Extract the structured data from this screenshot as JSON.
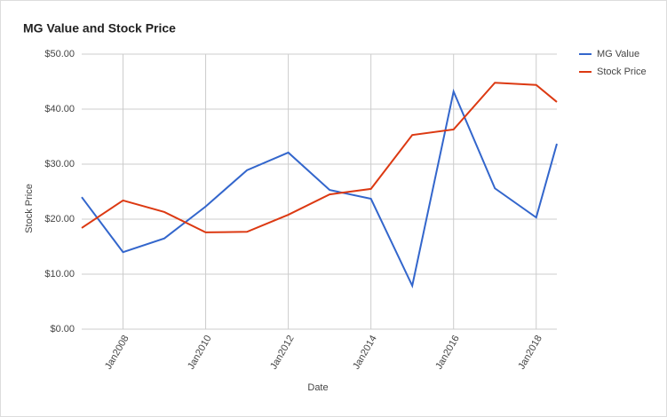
{
  "chart_data": {
    "type": "line",
    "title": "MG Value and Stock Price",
    "x_label": "Date",
    "y_label": "Stock Price",
    "x": [
      2007,
      2008,
      2009,
      2010,
      2011,
      2012,
      2013,
      2014,
      2015,
      2016,
      2017,
      2018,
      2018.5
    ],
    "series": [
      {
        "name": "MG Value",
        "color": "#3366cc",
        "values": [
          24.0,
          14.0,
          16.5,
          22.3,
          28.9,
          32.1,
          25.3,
          23.7,
          7.9,
          43.2,
          25.6,
          20.3,
          33.7
        ]
      },
      {
        "name": "Stock Price",
        "color": "#dc3912",
        "values": [
          18.4,
          23.4,
          21.3,
          17.6,
          17.7,
          20.8,
          24.5,
          25.5,
          35.3,
          36.3,
          44.8,
          44.4,
          41.3
        ]
      }
    ],
    "xlim": [
      2007,
      2018.5
    ],
    "xticks": [
      {
        "value": 2008,
        "label": "Jan2008"
      },
      {
        "value": 2010,
        "label": "Jan2010"
      },
      {
        "value": 2012,
        "label": "Jan2012"
      },
      {
        "value": 2014,
        "label": "Jan2014"
      },
      {
        "value": 2016,
        "label": "Jan2016"
      },
      {
        "value": 2018,
        "label": "Jan2018"
      }
    ],
    "ylim": [
      0,
      50
    ],
    "yticks": [
      {
        "value": 0,
        "label": "$0.00"
      },
      {
        "value": 10,
        "label": "$10.00"
      },
      {
        "value": 20,
        "label": "$20.00"
      },
      {
        "value": 30,
        "label": "$30.00"
      },
      {
        "value": 40,
        "label": "$40.00"
      },
      {
        "value": 50,
        "label": "$50.00"
      }
    ],
    "grid": true,
    "legend": "right"
  }
}
